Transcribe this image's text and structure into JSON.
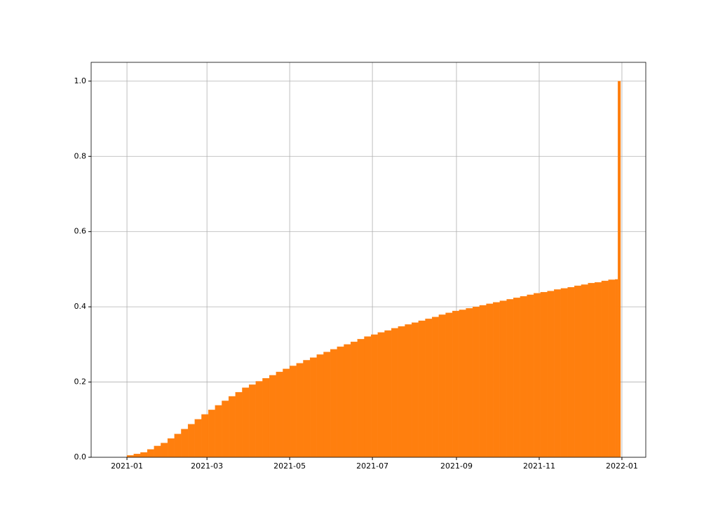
{
  "chart_data": {
    "type": "histogram",
    "color": "#ff7f0e",
    "grid": true,
    "bins": [
      0,
      5,
      10,
      15,
      20,
      25,
      30,
      35,
      40,
      45,
      50,
      55,
      60,
      65,
      70,
      75,
      80,
      85,
      90,
      95,
      100,
      105,
      110,
      115,
      120,
      125,
      130,
      135,
      140,
      145,
      150,
      155,
      160,
      165,
      170,
      175,
      180,
      185,
      190,
      195,
      200,
      205,
      210,
      215,
      220,
      225,
      230,
      235,
      240,
      245,
      250,
      255,
      260,
      265,
      270,
      275,
      280,
      285,
      290,
      295,
      300,
      305,
      310,
      315,
      320,
      325,
      330,
      335,
      340,
      345,
      350,
      355,
      360,
      362,
      364
    ],
    "values": [
      0.005,
      0.009,
      0.013,
      0.021,
      0.03,
      0.038,
      0.05,
      0.062,
      0.075,
      0.088,
      0.101,
      0.114,
      0.126,
      0.138,
      0.15,
      0.162,
      0.173,
      0.185,
      0.193,
      0.202,
      0.21,
      0.218,
      0.227,
      0.235,
      0.243,
      0.25,
      0.258,
      0.265,
      0.273,
      0.28,
      0.287,
      0.294,
      0.3,
      0.307,
      0.314,
      0.321,
      0.326,
      0.332,
      0.337,
      0.343,
      0.348,
      0.353,
      0.358,
      0.363,
      0.368,
      0.373,
      0.379,
      0.384,
      0.389,
      0.392,
      0.396,
      0.4,
      0.404,
      0.408,
      0.412,
      0.416,
      0.42,
      0.424,
      0.428,
      0.432,
      0.436,
      0.439,
      0.442,
      0.446,
      0.449,
      0.452,
      0.456,
      0.459,
      0.463,
      0.465,
      0.469,
      0.472,
      0.473,
      1.0
    ],
    "xlim": [
      -26.4,
      382.6
    ],
    "xticks": [
      {
        "value": 0,
        "label": "2021-01"
      },
      {
        "value": 59,
        "label": "2021-03"
      },
      {
        "value": 120,
        "label": "2021-05"
      },
      {
        "value": 181,
        "label": "2021-07"
      },
      {
        "value": 243,
        "label": "2021-09"
      },
      {
        "value": 304,
        "label": "2021-11"
      },
      {
        "value": 365,
        "label": "2022-01"
      }
    ],
    "ylim": [
      0,
      1.05
    ],
    "yticks": [
      {
        "value": 0,
        "label": "0.0"
      },
      0.2,
      0.4,
      0.6,
      0.8,
      {
        "value": 1,
        "label": "1.0"
      }
    ]
  }
}
